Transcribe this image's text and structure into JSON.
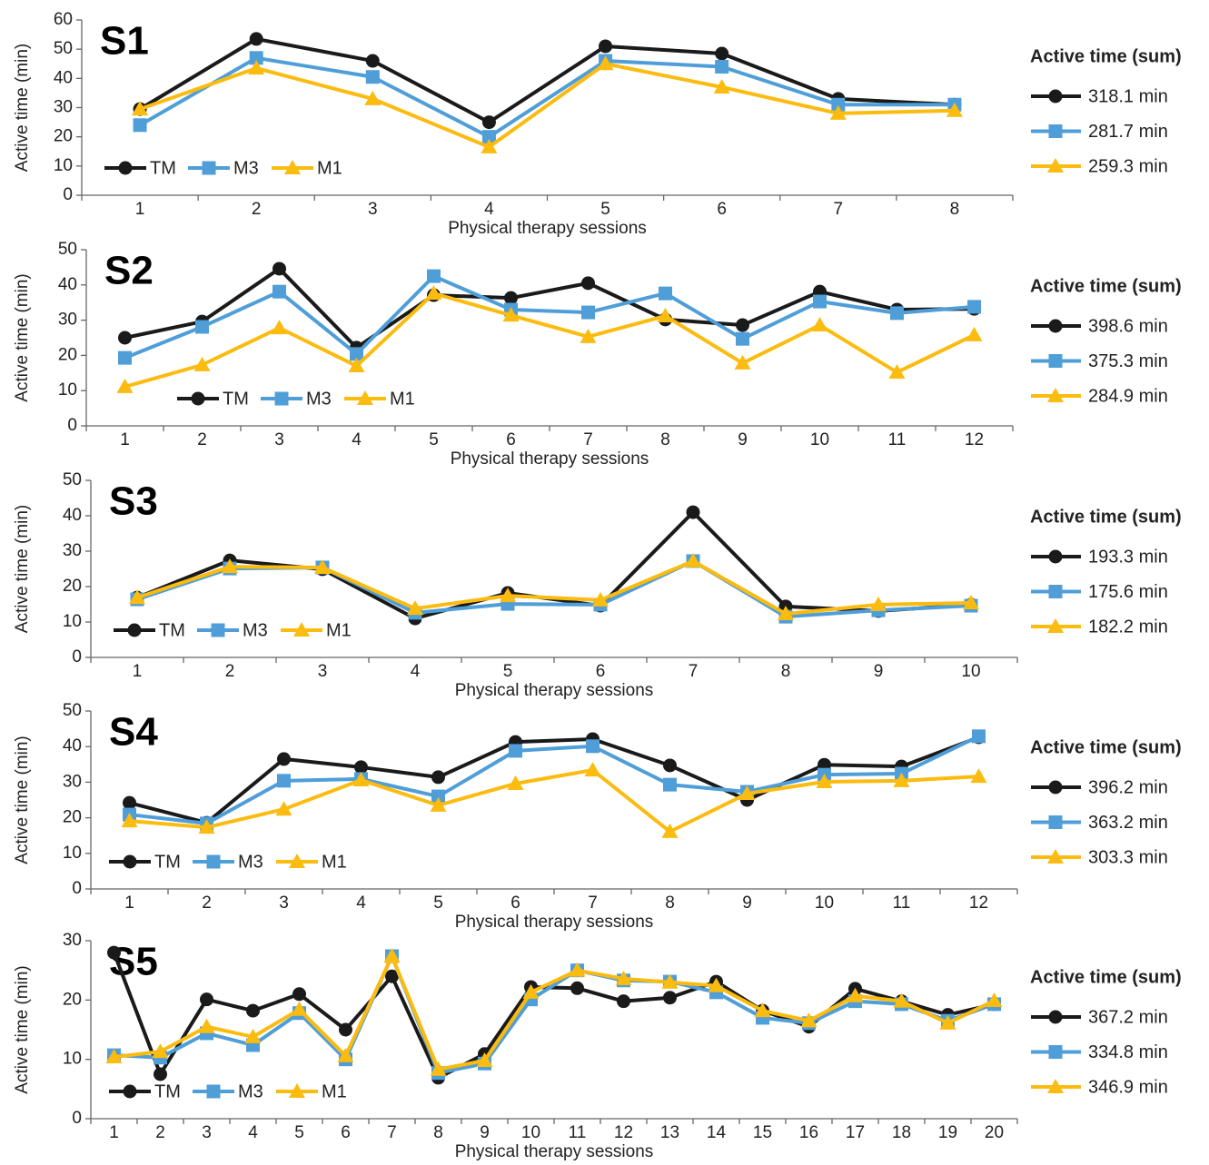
{
  "chart_data": [
    {
      "type": "line",
      "title": "S1",
      "xlabel": "Physical therapy sessions",
      "ylabel": "Active time (min)",
      "legend_title": "Active time (sum)",
      "categories": [
        "1",
        "2",
        "3",
        "4",
        "5",
        "6",
        "7",
        "8"
      ],
      "ylim": [
        0,
        60
      ],
      "yticks": [
        0,
        10,
        20,
        30,
        40,
        50,
        60
      ],
      "series": [
        {
          "name": "TM",
          "color": "#1a1a1a",
          "marker": "circle",
          "total_label": "318.1 min",
          "values": [
            29.5,
            53.5,
            46,
            25,
            51,
            48.5,
            33,
            31
          ]
        },
        {
          "name": "M3",
          "color": "#4f9ed8",
          "marker": "square",
          "total_label": "281.7 min",
          "values": [
            24,
            47,
            40.5,
            20,
            46,
            44,
            31,
            31
          ]
        },
        {
          "name": "M1",
          "color": "#fbbb0f",
          "marker": "triangle",
          "total_label": "259.3 min",
          "values": [
            29.5,
            43.5,
            33,
            16.5,
            45,
            37,
            28,
            29
          ]
        }
      ]
    },
    {
      "type": "line",
      "title": "S2",
      "xlabel": "Physical therapy sessions",
      "ylabel": "Active time (min)",
      "legend_title": "Active time (sum)",
      "categories": [
        "1",
        "2",
        "3",
        "4",
        "5",
        "6",
        "7",
        "8",
        "9",
        "10",
        "11",
        "12"
      ],
      "ylim": [
        0,
        50
      ],
      "yticks": [
        0,
        10,
        20,
        30,
        40,
        50
      ],
      "series": [
        {
          "name": "TM",
          "color": "#1a1a1a",
          "marker": "circle",
          "total_label": "398.6 min",
          "values": [
            25,
            29.6,
            44.6,
            22.2,
            37.1,
            36.3,
            40.5,
            30.2,
            28.6,
            38.1,
            33,
            33.2
          ]
        },
        {
          "name": "M3",
          "color": "#4f9ed8",
          "marker": "square",
          "total_label": "375.3 min",
          "values": [
            19.3,
            28.1,
            38.1,
            20.4,
            42.5,
            33,
            32.2,
            37.6,
            24.7,
            35.3,
            32,
            33.8
          ]
        },
        {
          "name": "M1",
          "color": "#fbbb0f",
          "marker": "triangle",
          "total_label": "284.9 min",
          "values": [
            11.1,
            17.3,
            27.8,
            17,
            37.6,
            31.4,
            25.3,
            31.2,
            17.8,
            28.6,
            15.2,
            25.8
          ]
        }
      ]
    },
    {
      "type": "line",
      "title": "S3",
      "xlabel": "Physical therapy sessions",
      "ylabel": "Active time (min)",
      "legend_title": "Active time (sum)",
      "categories": [
        "1",
        "2",
        "3",
        "4",
        "5",
        "6",
        "7",
        "8",
        "9",
        "10"
      ],
      "ylim": [
        0,
        50
      ],
      "yticks": [
        0,
        10,
        20,
        30,
        40,
        50
      ],
      "series": [
        {
          "name": "TM",
          "color": "#1a1a1a",
          "marker": "circle",
          "total_label": "193.3 min",
          "values": [
            16.9,
            27.4,
            24.9,
            11,
            18.2,
            14.6,
            41,
            14.4,
            13.1,
            14.9
          ]
        },
        {
          "name": "M3",
          "color": "#4f9ed8",
          "marker": "square",
          "total_label": "175.6 min",
          "values": [
            16.4,
            25.1,
            25.4,
            12.6,
            15.1,
            14.9,
            27.2,
            11.5,
            13.3,
            14.6
          ]
        },
        {
          "name": "M1",
          "color": "#fbbb0f",
          "marker": "triangle",
          "total_label": "182.2 min",
          "values": [
            16.9,
            25.6,
            25.4,
            13.8,
            17.4,
            16.2,
            27.2,
            12.3,
            14.9,
            15.4
          ]
        }
      ]
    },
    {
      "type": "line",
      "title": "S4",
      "xlabel": "Physical therapy sessions",
      "ylabel": "Active time (min)",
      "legend_title": "Active time (sum)",
      "categories": [
        "1",
        "2",
        "3",
        "4",
        "5",
        "6",
        "7",
        "8",
        "9",
        "10",
        "11",
        "12"
      ],
      "ylim": [
        0,
        50
      ],
      "yticks": [
        0,
        10,
        20,
        30,
        40,
        50
      ],
      "series": [
        {
          "name": "TM",
          "color": "#1a1a1a",
          "marker": "circle",
          "total_label": "396.2 min",
          "values": [
            24.2,
            18.6,
            36.5,
            34.2,
            31.4,
            41.3,
            42.1,
            34.7,
            25,
            34.9,
            34.4,
            42.6
          ]
        },
        {
          "name": "M3",
          "color": "#4f9ed8",
          "marker": "square",
          "total_label": "363.2 min",
          "values": [
            20.9,
            18.4,
            30.4,
            30.9,
            26,
            38.8,
            40.1,
            29.3,
            27.3,
            32.1,
            32.4,
            42.9
          ]
        },
        {
          "name": "M1",
          "color": "#fbbb0f",
          "marker": "triangle",
          "total_label": "303.3 min",
          "values": [
            19.1,
            17.3,
            22.4,
            30.6,
            23.5,
            29.6,
            33.4,
            16.1,
            26.8,
            30.1,
            30.4,
            31.6
          ]
        }
      ]
    },
    {
      "type": "line",
      "title": "S5",
      "xlabel": "Physical therapy sessions",
      "ylabel": "Active time (min)",
      "legend_title": "Active time (sum)",
      "categories": [
        "1",
        "2",
        "3",
        "4",
        "5",
        "6",
        "7",
        "8",
        "9",
        "10",
        "11",
        "12",
        "13",
        "14",
        "15",
        "16",
        "17",
        "18",
        "19",
        "20"
      ],
      "ylim": [
        0,
        30
      ],
      "yticks": [
        0,
        10,
        20,
        30
      ],
      "series": [
        {
          "name": "TM",
          "color": "#1a1a1a",
          "marker": "circle",
          "total_label": "367.2 min",
          "values": [
            28,
            7.5,
            20.1,
            18.2,
            21,
            15,
            24,
            6.9,
            10.9,
            22.2,
            22,
            19.8,
            20.4,
            23.1,
            18.2,
            15.5,
            21.9,
            19.8,
            17.5,
            19.3
          ]
        },
        {
          "name": "M3",
          "color": "#4f9ed8",
          "marker": "square",
          "total_label": "334.8 min",
          "values": [
            10.7,
            10.3,
            14.4,
            12.4,
            17.8,
            10,
            27.4,
            7.7,
            9.3,
            20.1,
            25,
            23.3,
            23.1,
            21.3,
            17,
            16.1,
            19.8,
            19.3,
            16.5,
            19.3
          ]
        },
        {
          "name": "M1",
          "color": "#fbbb0f",
          "marker": "triangle",
          "total_label": "346.9 min",
          "values": [
            10.4,
            11.3,
            15.5,
            13.8,
            18.4,
            10.6,
            27.4,
            8.3,
            9.8,
            21.3,
            25,
            23.6,
            23,
            22.4,
            18.2,
            16.5,
            20.7,
            19.8,
            16.1,
            19.9
          ]
        }
      ]
    }
  ]
}
